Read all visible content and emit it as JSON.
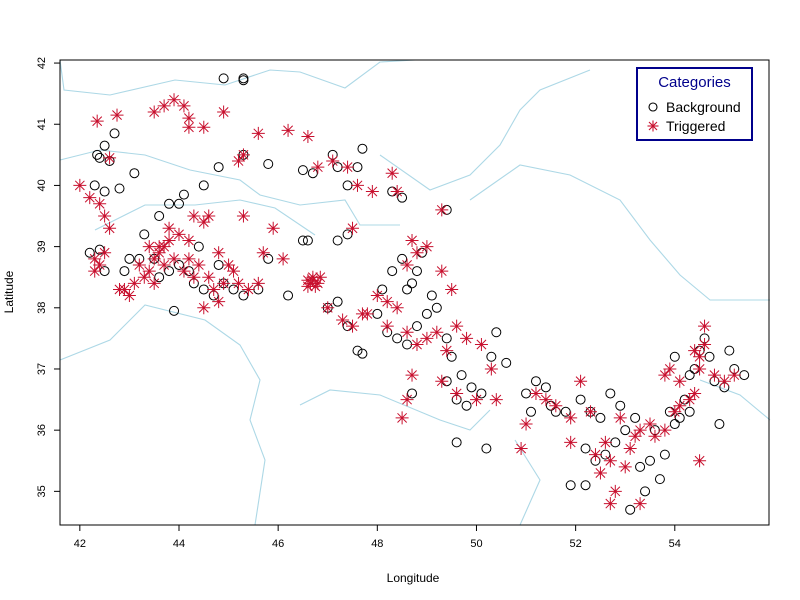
{
  "chart_data": {
    "type": "scatter",
    "xlabel": "Longitude",
    "ylabel": "Latitude",
    "xlim": [
      41.6,
      55.9
    ],
    "ylim": [
      34.45,
      42.05
    ],
    "xticks": [
      "42",
      "44",
      "46",
      "48",
      "50",
      "52",
      "54"
    ],
    "yticks": [
      "35",
      "36",
      "37",
      "38",
      "39",
      "40",
      "41",
      "42"
    ],
    "legend": {
      "title": "Categories",
      "position": "top-right",
      "border_color": "#00008B",
      "title_color": "#00008B"
    },
    "series": [
      {
        "name": "Background",
        "marker": "open-circle",
        "color": "#000000",
        "points": [
          [
            44.9,
            41.75
          ],
          [
            45.3,
            41.75
          ],
          [
            45.3,
            41.72
          ],
          [
            42.7,
            40.85
          ],
          [
            42.5,
            40.65
          ],
          [
            42.35,
            40.5
          ],
          [
            42.4,
            40.45
          ],
          [
            42.6,
            40.4
          ],
          [
            42.3,
            40.0
          ],
          [
            42.5,
            39.9
          ],
          [
            43.1,
            40.2
          ],
          [
            42.8,
            39.95
          ],
          [
            44.1,
            39.85
          ],
          [
            44.0,
            39.7
          ],
          [
            43.8,
            39.7
          ],
          [
            43.6,
            39.5
          ],
          [
            44.5,
            40.0
          ],
          [
            44.8,
            40.3
          ],
          [
            45.3,
            40.5
          ],
          [
            45.8,
            40.35
          ],
          [
            46.5,
            40.25
          ],
          [
            46.7,
            40.2
          ],
          [
            47.1,
            40.5
          ],
          [
            47.2,
            40.3
          ],
          [
            47.4,
            40.0
          ],
          [
            47.6,
            40.3
          ],
          [
            47.7,
            40.6
          ],
          [
            42.2,
            38.9
          ],
          [
            42.4,
            38.95
          ],
          [
            42.5,
            38.6
          ],
          [
            42.9,
            38.6
          ],
          [
            43.0,
            38.8
          ],
          [
            43.2,
            38.8
          ],
          [
            43.3,
            39.2
          ],
          [
            43.5,
            38.8
          ],
          [
            43.6,
            38.5
          ],
          [
            43.8,
            38.6
          ],
          [
            44.0,
            38.7
          ],
          [
            44.2,
            38.6
          ],
          [
            44.3,
            38.4
          ],
          [
            44.5,
            38.3
          ],
          [
            44.7,
            38.2
          ],
          [
            44.9,
            38.4
          ],
          [
            45.1,
            38.3
          ],
          [
            45.3,
            38.2
          ],
          [
            45.6,
            38.3
          ],
          [
            45.8,
            38.8
          ],
          [
            46.2,
            38.2
          ],
          [
            46.5,
            39.1
          ],
          [
            46.6,
            39.1
          ],
          [
            43.9,
            37.95
          ],
          [
            44.4,
            39.0
          ],
          [
            44.8,
            38.7
          ],
          [
            47.0,
            38.0
          ],
          [
            47.2,
            38.1
          ],
          [
            47.4,
            37.7
          ],
          [
            47.6,
            37.3
          ],
          [
            47.7,
            37.25
          ],
          [
            48.0,
            37.9
          ],
          [
            48.1,
            38.3
          ],
          [
            48.3,
            38.6
          ],
          [
            48.5,
            38.8
          ],
          [
            48.8,
            38.6
          ],
          [
            48.9,
            38.9
          ],
          [
            49.1,
            38.2
          ],
          [
            49.2,
            38.0
          ],
          [
            49.4,
            39.6
          ],
          [
            48.3,
            39.9
          ],
          [
            48.5,
            39.8
          ],
          [
            47.4,
            39.2
          ],
          [
            47.2,
            39.1
          ],
          [
            48.6,
            38.3
          ],
          [
            48.7,
            38.4
          ],
          [
            48.2,
            37.6
          ],
          [
            48.4,
            37.5
          ],
          [
            48.6,
            37.4
          ],
          [
            48.8,
            37.7
          ],
          [
            49.0,
            37.9
          ],
          [
            49.4,
            37.5
          ],
          [
            49.5,
            37.2
          ],
          [
            49.7,
            36.9
          ],
          [
            49.9,
            36.7
          ],
          [
            50.1,
            36.6
          ],
          [
            50.3,
            37.2
          ],
          [
            50.4,
            37.6
          ],
          [
            50.6,
            37.1
          ],
          [
            49.4,
            36.8
          ],
          [
            49.6,
            36.5
          ],
          [
            49.8,
            36.4
          ],
          [
            49.6,
            35.8
          ],
          [
            50.2,
            35.7
          ],
          [
            48.7,
            36.6
          ],
          [
            51.0,
            36.6
          ],
          [
            51.1,
            36.3
          ],
          [
            51.2,
            36.8
          ],
          [
            51.4,
            36.7
          ],
          [
            51.5,
            36.4
          ],
          [
            51.6,
            36.3
          ],
          [
            51.8,
            36.3
          ],
          [
            52.1,
            36.5
          ],
          [
            52.3,
            36.3
          ],
          [
            52.5,
            36.2
          ],
          [
            52.2,
            35.7
          ],
          [
            52.4,
            35.5
          ],
          [
            52.6,
            35.6
          ],
          [
            52.8,
            35.8
          ],
          [
            53.0,
            36.0
          ],
          [
            53.2,
            36.2
          ],
          [
            52.7,
            36.6
          ],
          [
            52.9,
            36.4
          ],
          [
            51.9,
            35.1
          ],
          [
            52.2,
            35.1
          ],
          [
            53.3,
            35.4
          ],
          [
            53.5,
            35.5
          ],
          [
            53.4,
            35.0
          ],
          [
            53.1,
            34.7
          ],
          [
            53.7,
            35.2
          ],
          [
            53.8,
            35.6
          ],
          [
            53.6,
            36.0
          ],
          [
            53.9,
            36.3
          ],
          [
            54.0,
            36.1
          ],
          [
            54.1,
            36.2
          ],
          [
            54.2,
            36.5
          ],
          [
            54.3,
            36.9
          ],
          [
            54.4,
            37.0
          ],
          [
            54.5,
            37.3
          ],
          [
            54.6,
            37.5
          ],
          [
            54.7,
            37.2
          ],
          [
            54.8,
            36.8
          ],
          [
            55.0,
            36.7
          ],
          [
            55.2,
            37.0
          ],
          [
            55.4,
            36.9
          ],
          [
            54.3,
            36.3
          ],
          [
            54.9,
            36.1
          ],
          [
            54.0,
            37.2
          ],
          [
            55.1,
            37.3
          ]
        ]
      },
      {
        "name": "Triggered",
        "marker": "asterisk",
        "color": "#C8102E",
        "points": [
          [
            43.9,
            41.4
          ],
          [
            43.7,
            41.3
          ],
          [
            43.5,
            41.2
          ],
          [
            44.1,
            41.3
          ],
          [
            44.2,
            41.1
          ],
          [
            44.2,
            40.95
          ],
          [
            44.5,
            40.95
          ],
          [
            44.9,
            41.2
          ],
          [
            42.35,
            41.05
          ],
          [
            42.75,
            41.15
          ],
          [
            42.6,
            40.45
          ],
          [
            45.2,
            40.4
          ],
          [
            45.3,
            40.5
          ],
          [
            45.6,
            40.85
          ],
          [
            46.2,
            40.9
          ],
          [
            46.6,
            40.8
          ],
          [
            46.8,
            40.3
          ],
          [
            47.1,
            40.4
          ],
          [
            47.4,
            40.3
          ],
          [
            42.0,
            40.0
          ],
          [
            42.2,
            39.8
          ],
          [
            42.4,
            39.7
          ],
          [
            42.5,
            39.5
          ],
          [
            42.6,
            39.3
          ],
          [
            42.3,
            38.8
          ],
          [
            42.5,
            38.9
          ],
          [
            42.4,
            38.7
          ],
          [
            42.3,
            38.6
          ],
          [
            42.9,
            38.3
          ],
          [
            43.1,
            38.4
          ],
          [
            43.2,
            38.7
          ],
          [
            43.4,
            38.6
          ],
          [
            43.5,
            38.8
          ],
          [
            43.6,
            38.9
          ],
          [
            43.7,
            39.0
          ],
          [
            43.8,
            39.1
          ],
          [
            43.6,
            39.0
          ],
          [
            43.7,
            38.7
          ],
          [
            43.9,
            38.8
          ],
          [
            44.1,
            38.6
          ],
          [
            44.2,
            38.8
          ],
          [
            44.3,
            38.5
          ],
          [
            44.4,
            38.7
          ],
          [
            44.6,
            38.5
          ],
          [
            44.7,
            38.3
          ],
          [
            44.9,
            38.4
          ],
          [
            45.1,
            38.6
          ],
          [
            45.2,
            38.4
          ],
          [
            45.4,
            38.3
          ],
          [
            45.6,
            38.4
          ],
          [
            43.3,
            38.5
          ],
          [
            43.5,
            38.4
          ],
          [
            43.4,
            39.0
          ],
          [
            43.8,
            39.3
          ],
          [
            44.0,
            39.2
          ],
          [
            44.2,
            39.1
          ],
          [
            44.5,
            39.4
          ],
          [
            44.8,
            38.9
          ],
          [
            45.0,
            38.7
          ],
          [
            45.3,
            39.5
          ],
          [
            45.9,
            39.3
          ],
          [
            46.1,
            38.8
          ],
          [
            45.7,
            38.9
          ],
          [
            44.5,
            38.0
          ],
          [
            44.8,
            38.1
          ],
          [
            42.8,
            38.3
          ],
          [
            43.0,
            38.2
          ],
          [
            44.3,
            39.5
          ],
          [
            44.6,
            39.5
          ],
          [
            46.6,
            38.45
          ],
          [
            46.7,
            38.5
          ],
          [
            46.8,
            38.4
          ],
          [
            46.75,
            38.35
          ],
          [
            46.65,
            38.4
          ],
          [
            46.85,
            38.5
          ],
          [
            46.7,
            38.45
          ],
          [
            46.6,
            38.35
          ],
          [
            47.0,
            38.0
          ],
          [
            47.3,
            37.8
          ],
          [
            47.5,
            37.7
          ],
          [
            47.8,
            37.9
          ],
          [
            48.0,
            38.2
          ],
          [
            48.2,
            38.1
          ],
          [
            48.4,
            38.0
          ],
          [
            48.6,
            38.7
          ],
          [
            48.8,
            38.9
          ],
          [
            48.7,
            39.1
          ],
          [
            49.0,
            39.0
          ],
          [
            49.3,
            38.6
          ],
          [
            49.5,
            38.3
          ],
          [
            49.3,
            39.6
          ],
          [
            48.4,
            39.9
          ],
          [
            48.3,
            40.2
          ],
          [
            47.9,
            39.9
          ],
          [
            47.6,
            40.0
          ],
          [
            47.5,
            39.3
          ],
          [
            47.7,
            37.9
          ],
          [
            48.2,
            37.7
          ],
          [
            48.6,
            37.6
          ],
          [
            48.8,
            37.4
          ],
          [
            49.0,
            37.5
          ],
          [
            49.2,
            37.6
          ],
          [
            49.4,
            37.3
          ],
          [
            49.6,
            37.7
          ],
          [
            49.8,
            37.5
          ],
          [
            50.1,
            37.4
          ],
          [
            50.3,
            37.0
          ],
          [
            48.7,
            36.9
          ],
          [
            48.6,
            36.5
          ],
          [
            48.5,
            36.2
          ],
          [
            49.3,
            36.8
          ],
          [
            49.6,
            36.6
          ],
          [
            50.0,
            36.5
          ],
          [
            50.4,
            36.5
          ],
          [
            50.9,
            35.7
          ],
          [
            51.0,
            36.1
          ],
          [
            51.2,
            36.6
          ],
          [
            51.4,
            36.5
          ],
          [
            51.6,
            36.4
          ],
          [
            51.9,
            36.2
          ],
          [
            52.1,
            36.8
          ],
          [
            52.3,
            36.3
          ],
          [
            52.4,
            35.6
          ],
          [
            52.5,
            35.3
          ],
          [
            52.7,
            35.5
          ],
          [
            52.8,
            35.0
          ],
          [
            53.0,
            35.4
          ],
          [
            53.1,
            35.7
          ],
          [
            53.2,
            35.9
          ],
          [
            53.3,
            36.0
          ],
          [
            53.5,
            36.1
          ],
          [
            53.6,
            35.9
          ],
          [
            53.8,
            36.0
          ],
          [
            54.0,
            36.3
          ],
          [
            54.1,
            36.4
          ],
          [
            54.3,
            36.5
          ],
          [
            52.7,
            34.8
          ],
          [
            53.3,
            34.8
          ],
          [
            54.5,
            35.5
          ],
          [
            54.4,
            37.3
          ],
          [
            54.5,
            37.2
          ],
          [
            54.6,
            37.7
          ],
          [
            54.5,
            37.0
          ],
          [
            54.6,
            37.4
          ],
          [
            54.8,
            36.9
          ],
          [
            55.0,
            36.8
          ],
          [
            55.2,
            36.9
          ],
          [
            53.8,
            36.9
          ],
          [
            53.9,
            37.0
          ],
          [
            54.1,
            36.8
          ],
          [
            54.4,
            36.6
          ],
          [
            51.9,
            35.8
          ],
          [
            52.9,
            36.2
          ],
          [
            52.6,
            35.8
          ]
        ]
      }
    ]
  }
}
